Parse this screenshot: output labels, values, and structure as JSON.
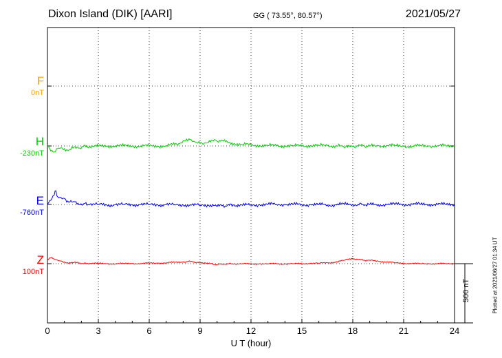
{
  "header": {
    "station": "Dixon Island (DIK)  [AARI]",
    "coords": "GG ( 73.55°,  80.57°)",
    "date": "2021/05/27"
  },
  "channels": [
    {
      "key": "F",
      "label": "F",
      "baseline": "0nT",
      "color": "#ffa500"
    },
    {
      "key": "H",
      "label": "H",
      "baseline": "-230nT",
      "color": "#00cc00"
    },
    {
      "key": "E",
      "label": "E",
      "baseline": "-760nT",
      "color": "#0000ff"
    },
    {
      "key": "Z",
      "label": "Z",
      "baseline": "100nT",
      "color": "#ff0000"
    }
  ],
  "scale_bar": {
    "label": "500 nT"
  },
  "plotted_note": "Plotted at 2021/06/27 01:34 UT",
  "chart_data": {
    "type": "line",
    "title": "Dixon Island (DIK)  [AARI]",
    "xlabel": "U T (hour)",
    "xlim": [
      0,
      24
    ],
    "xticks": [
      0,
      3,
      6,
      9,
      12,
      15,
      18,
      21,
      24
    ],
    "grid": true,
    "series": [
      {
        "name": "H",
        "baseline": "-230nT",
        "color": "#00cc00",
        "x": [
          0,
          0.2,
          0.4,
          0.6,
          0.8,
          1.0,
          1.2,
          1.5,
          1.8,
          2.1,
          2.5,
          3.0,
          3.5,
          4.0,
          4.5,
          5.0,
          5.5,
          6.0,
          6.5,
          7.0,
          7.5,
          7.8,
          8.0,
          8.2,
          8.4,
          8.6,
          8.8,
          9.0,
          9.3,
          9.6,
          9.9,
          10.2,
          10.5,
          11.0,
          11.5,
          12.0,
          12.5,
          13.0,
          13.5,
          14.0,
          14.5,
          15.0,
          15.5,
          16.0,
          16.5,
          17.0,
          17.3,
          17.5,
          17.7,
          18.0,
          18.3,
          18.6,
          19.0,
          19.5,
          20.0,
          20.5,
          21.0,
          21.5,
          22.0,
          22.5,
          23.0,
          23.5,
          24.0
        ],
        "y": [
          0,
          -120,
          -140,
          -60,
          -40,
          -60,
          -100,
          -50,
          -40,
          -20,
          -10,
          -10,
          0,
          5,
          0,
          0,
          0,
          -5,
          0,
          10,
          30,
          60,
          120,
          160,
          150,
          110,
          80,
          60,
          70,
          90,
          140,
          110,
          100,
          60,
          30,
          20,
          15,
          10,
          5,
          5,
          0,
          5,
          10,
          10,
          10,
          5,
          0,
          -40,
          -30,
          -10,
          0,
          0,
          0,
          5,
          10,
          5,
          0,
          -10,
          5,
          0,
          5,
          0,
          0
        ]
      },
      {
        "name": "E",
        "baseline": "-760nT",
        "color": "#0000ff",
        "x": [
          0,
          0.2,
          0.4,
          0.5,
          0.6,
          0.8,
          1.0,
          1.2,
          1.5,
          1.8,
          2.1,
          2.5,
          3.0,
          3.5,
          4.0,
          4.5,
          5.0,
          5.5,
          6.0,
          6.5,
          7.0,
          7.5,
          8.0,
          8.5,
          9.0,
          9.5,
          9.8,
          10.0,
          10.3,
          10.6,
          11.0,
          11.5,
          12.0,
          12.5,
          13.0,
          13.5,
          14.0,
          14.5,
          15.0,
          15.5,
          16.0,
          16.5,
          17.0,
          17.3,
          17.5,
          17.8,
          18.0,
          18.3,
          18.6,
          19.0,
          19.5,
          20.0,
          20.5,
          21.0,
          21.5,
          22.0,
          22.5,
          23.0,
          23.5,
          24.0
        ],
        "y": [
          0,
          100,
          220,
          320,
          180,
          160,
          140,
          80,
          60,
          30,
          10,
          5,
          0,
          -10,
          -5,
          0,
          -5,
          0,
          0,
          -5,
          -5,
          -10,
          -10,
          -15,
          -20,
          -15,
          -25,
          -50,
          -30,
          -20,
          -15,
          -20,
          -10,
          -5,
          0,
          5,
          5,
          0,
          -5,
          0,
          -5,
          -10,
          -10,
          0,
          5,
          10,
          5,
          0,
          0,
          0,
          0,
          0,
          5,
          10,
          5,
          5,
          5,
          5,
          0,
          0
        ]
      },
      {
        "name": "Z",
        "baseline": "100nT",
        "color": "#ff0000",
        "x": [
          0,
          0.2,
          0.4,
          0.6,
          0.8,
          1.0,
          1.2,
          1.5,
          1.8,
          2.1,
          2.5,
          3.0,
          3.5,
          4.0,
          4.5,
          5.0,
          5.5,
          6.0,
          6.5,
          7.0,
          7.5,
          8.0,
          8.3,
          8.6,
          9.0,
          9.3,
          9.6,
          10.0,
          10.3,
          10.6,
          11.0,
          11.5,
          12.0,
          12.5,
          13.0,
          13.5,
          14.0,
          14.5,
          15.0,
          15.5,
          16.0,
          16.5,
          17.0,
          17.5,
          18.0,
          18.3,
          18.6,
          19.0,
          19.5,
          20.0,
          20.5,
          21.0,
          21.5,
          22.0,
          22.5,
          23.0,
          23.5,
          24.0
        ],
        "y": [
          80,
          140,
          110,
          80,
          60,
          40,
          20,
          20,
          30,
          0,
          10,
          5,
          0,
          0,
          0,
          5,
          5,
          10,
          15,
          20,
          30,
          40,
          50,
          40,
          20,
          20,
          0,
          -20,
          -10,
          0,
          -5,
          0,
          -10,
          0,
          -5,
          0,
          -5,
          0,
          0,
          10,
          10,
          20,
          40,
          80,
          120,
          100,
          80,
          80,
          60,
          40,
          20,
          10,
          5,
          0,
          0,
          0,
          0,
          0
        ]
      }
    ]
  }
}
